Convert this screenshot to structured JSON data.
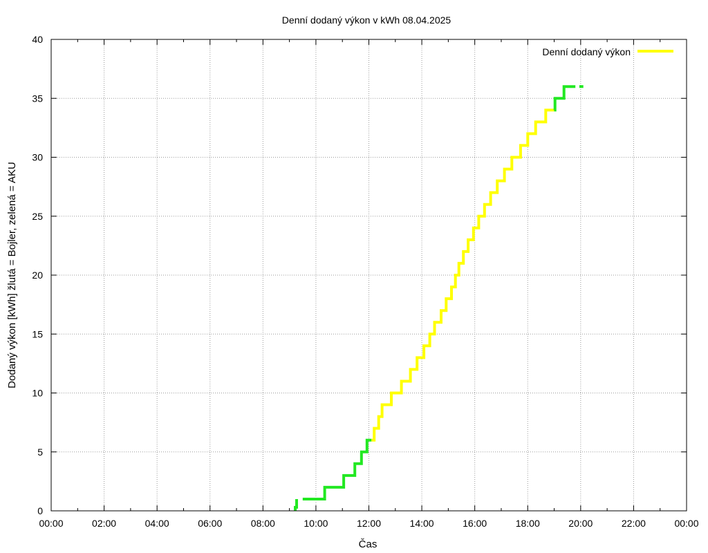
{
  "chart_data": {
    "type": "line",
    "title": "Denní dodaný výkon v kWh 08.04.2025",
    "xlabel": "Čas",
    "ylabel": "Dodaný výkon [kWh]  žlutá = Bojler, zelená = AKU",
    "x_unit": "hour",
    "xlim": [
      0,
      24
    ],
    "ylim": [
      0,
      40
    ],
    "x_ticks": [
      {
        "value": 0,
        "label": "00:00"
      },
      {
        "value": 2,
        "label": "02:00"
      },
      {
        "value": 4,
        "label": "04:00"
      },
      {
        "value": 6,
        "label": "06:00"
      },
      {
        "value": 8,
        "label": "08:00"
      },
      {
        "value": 10,
        "label": "10:00"
      },
      {
        "value": 12,
        "label": "12:00"
      },
      {
        "value": 14,
        "label": "14:00"
      },
      {
        "value": 16,
        "label": "16:00"
      },
      {
        "value": 18,
        "label": "18:00"
      },
      {
        "value": 20,
        "label": "20:00"
      },
      {
        "value": 22,
        "label": "22:00"
      },
      {
        "value": 24,
        "label": "00:00"
      }
    ],
    "y_ticks": [
      0,
      5,
      10,
      15,
      20,
      25,
      30,
      35,
      40
    ],
    "grid": true,
    "legend": {
      "position": "top-right",
      "entries": [
        {
          "label": "Denní dodaný výkon",
          "color": "#ffff00"
        }
      ]
    },
    "colors": {
      "yellow": "#ffff00",
      "green": "#22e822"
    },
    "segments": [
      {
        "color": "green",
        "points": [
          [
            9.22,
            0
          ],
          [
            9.22,
            0.3
          ],
          [
            9.27,
            0.3
          ],
          [
            9.27,
            1
          ]
        ]
      },
      {
        "color": "green",
        "points": [
          [
            9.5,
            1
          ],
          [
            10.33,
            1
          ],
          [
            10.33,
            2
          ],
          [
            11.05,
            2
          ],
          [
            11.05,
            3
          ],
          [
            11.47,
            3
          ],
          [
            11.47,
            4
          ],
          [
            11.72,
            4
          ],
          [
            11.72,
            5
          ],
          [
            11.93,
            5
          ],
          [
            11.93,
            6
          ],
          [
            12.1,
            6
          ]
        ]
      },
      {
        "color": "yellow",
        "points": [
          [
            12.1,
            6
          ],
          [
            12.2,
            6
          ],
          [
            12.2,
            7
          ],
          [
            12.37,
            7
          ],
          [
            12.37,
            8
          ],
          [
            12.5,
            8
          ],
          [
            12.5,
            9
          ],
          [
            12.85,
            9
          ],
          [
            12.85,
            10
          ],
          [
            13.23,
            10
          ],
          [
            13.23,
            11
          ],
          [
            13.57,
            11
          ],
          [
            13.57,
            12
          ],
          [
            13.82,
            12
          ],
          [
            13.82,
            13
          ],
          [
            14.08,
            13
          ],
          [
            14.08,
            14
          ],
          [
            14.3,
            14
          ],
          [
            14.3,
            15
          ],
          [
            14.48,
            15
          ],
          [
            14.48,
            16
          ],
          [
            14.73,
            16
          ],
          [
            14.73,
            17
          ],
          [
            14.92,
            17
          ],
          [
            14.92,
            18
          ],
          [
            15.12,
            18
          ],
          [
            15.12,
            19
          ],
          [
            15.27,
            19
          ],
          [
            15.27,
            20
          ],
          [
            15.4,
            20
          ],
          [
            15.4,
            21
          ],
          [
            15.57,
            21
          ],
          [
            15.57,
            22
          ],
          [
            15.75,
            22
          ],
          [
            15.75,
            23
          ],
          [
            15.95,
            23
          ],
          [
            15.95,
            24
          ],
          [
            16.15,
            24
          ],
          [
            16.15,
            25
          ],
          [
            16.37,
            25
          ],
          [
            16.37,
            26
          ],
          [
            16.6,
            26
          ],
          [
            16.6,
            27
          ],
          [
            16.85,
            27
          ],
          [
            16.85,
            28
          ],
          [
            17.12,
            28
          ],
          [
            17.12,
            29
          ],
          [
            17.4,
            29
          ],
          [
            17.4,
            30
          ],
          [
            17.73,
            30
          ],
          [
            17.73,
            31
          ],
          [
            18.0,
            31
          ],
          [
            18.0,
            32
          ],
          [
            18.3,
            32
          ],
          [
            18.3,
            33
          ],
          [
            18.68,
            33
          ],
          [
            18.68,
            34
          ],
          [
            19.0,
            34
          ]
        ]
      },
      {
        "color": "green",
        "points": [
          [
            19.0,
            34
          ],
          [
            19.03,
            34
          ],
          [
            19.03,
            35
          ],
          [
            19.37,
            35
          ],
          [
            19.37,
            36
          ],
          [
            19.8,
            36
          ]
        ]
      },
      {
        "color": "green",
        "points": [
          [
            19.95,
            36
          ],
          [
            20.1,
            36
          ]
        ]
      }
    ]
  }
}
